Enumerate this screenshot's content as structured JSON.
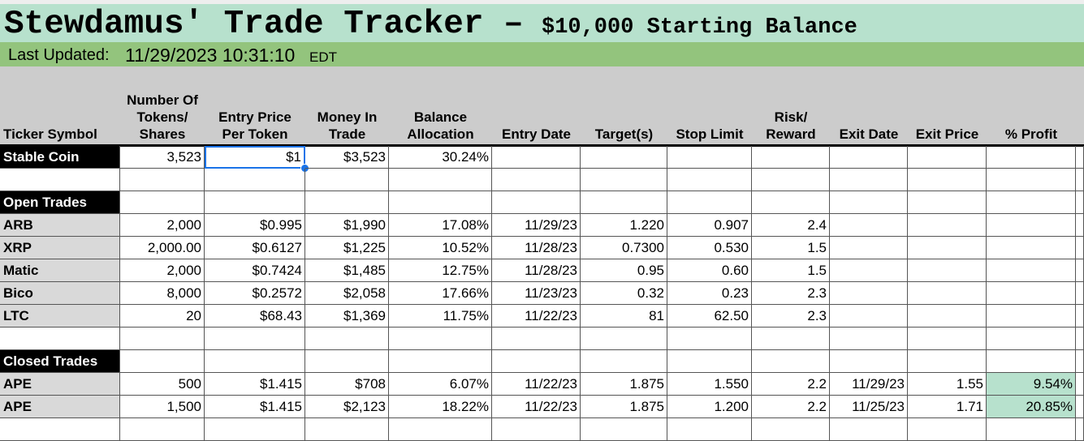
{
  "header": {
    "title": "Stewdamus' Trade Tracker –",
    "subtitle": "$10,000 Starting Balance",
    "updated_label": "Last Updated:",
    "updated_value": "11/29/2023 10:31:10",
    "timezone": "EDT"
  },
  "table": {
    "columns": [
      "Ticker Symbol",
      "Number Of\nTokens/\nShares",
      "Entry Price\nPer Token",
      "Money In\nTrade",
      "Balance\nAllocation",
      "Entry Date",
      "Target(s)",
      "Stop Limit",
      "Risk/\nReward",
      "Exit Date",
      "Exit Price",
      "% Profit"
    ],
    "stable": [
      "Stable Coin",
      "3,523",
      "$1",
      "$3,523",
      "30.24%"
    ],
    "open_trades": {
      "label": "Open Trades",
      "rows": [
        [
          "ARB",
          "2,000",
          "$0.995",
          "$1,990",
          "17.08%",
          "11/29/23",
          "1.220",
          "0.907",
          "2.4"
        ],
        [
          "XRP",
          "2,000.00",
          "$0.6127",
          "$1,225",
          "10.52%",
          "11/28/23",
          "0.7300",
          "0.530",
          "1.5"
        ],
        [
          "Matic",
          "2,000",
          "$0.7424",
          "$1,485",
          "12.75%",
          "11/28/23",
          "0.95",
          "0.60",
          "1.5"
        ],
        [
          "Bico",
          "8,000",
          "$0.2572",
          "$2,058",
          "17.66%",
          "11/23/23",
          "0.32",
          "0.23",
          "2.3"
        ],
        [
          "LTC",
          "20",
          "$68.43",
          "$1,369",
          "11.75%",
          "11/22/23",
          "81",
          "62.50",
          "2.3"
        ]
      ]
    },
    "closed_trades": {
      "label": "Closed Trades",
      "rows": [
        [
          "APE",
          "500",
          "$1.415",
          "$708",
          "6.07%",
          "11/22/23",
          "1.875",
          "1.550",
          "2.2",
          "11/29/23",
          "1.55",
          "9.54%"
        ],
        [
          "APE",
          "1,500",
          "$1.415",
          "$2,123",
          "18.22%",
          "11/22/23",
          "1.875",
          "1.200",
          "2.2",
          "11/25/23",
          "1.71",
          "20.85%"
        ]
      ]
    }
  }
}
